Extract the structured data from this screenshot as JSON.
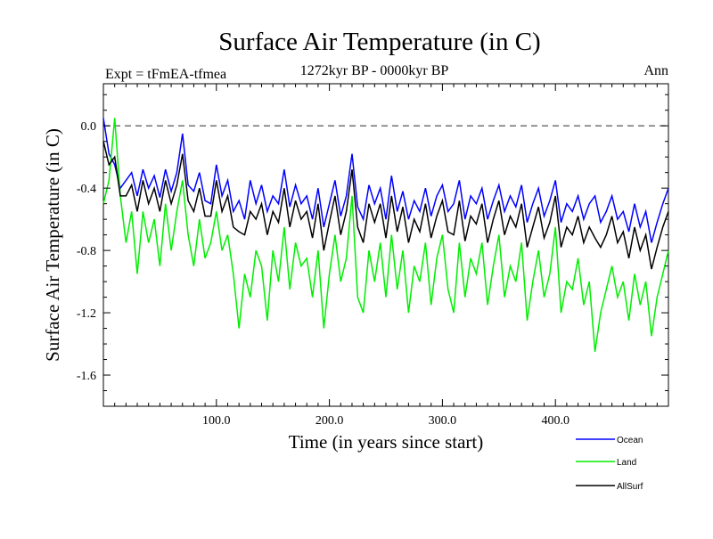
{
  "chart_data": {
    "type": "line",
    "title": "Surface Air Temperature (in C)",
    "subtitle": "1272kyr BP - 0000kyr BP",
    "experiment_label": "Expt = tFmEA-tfmea",
    "period_label": "Ann",
    "xlabel": "Time (in years since start)",
    "ylabel": "Surface Air Temperature (in C)",
    "xlim": [
      0,
      500
    ],
    "ylim": [
      -1.8,
      0.27
    ],
    "x_ticks": [
      100,
      200,
      300,
      400
    ],
    "x_tick_labels": [
      "100.0",
      "200.0",
      "300.0",
      "400.0"
    ],
    "y_ticks": [
      0.0,
      -0.4,
      -0.8,
      -1.2,
      -1.6
    ],
    "y_tick_labels": [
      "0.0",
      "-0.4",
      "-0.8",
      "-1.2",
      "-1.6"
    ],
    "reference_line": {
      "y": 0.0,
      "style": "dashed"
    },
    "grid": false,
    "legend_position": "bottom-right",
    "x": [
      0,
      5,
      10,
      15,
      20,
      25,
      30,
      35,
      40,
      45,
      50,
      55,
      60,
      65,
      70,
      75,
      80,
      85,
      90,
      95,
      100,
      105,
      110,
      115,
      120,
      125,
      130,
      135,
      140,
      145,
      150,
      155,
      160,
      165,
      170,
      175,
      180,
      185,
      190,
      195,
      200,
      205,
      210,
      215,
      220,
      225,
      230,
      235,
      240,
      245,
      250,
      255,
      260,
      265,
      270,
      275,
      280,
      285,
      290,
      295,
      300,
      305,
      310,
      315,
      320,
      325,
      330,
      335,
      340,
      345,
      350,
      355,
      360,
      365,
      370,
      375,
      380,
      385,
      390,
      395,
      400,
      405,
      410,
      415,
      420,
      425,
      430,
      435,
      440,
      445,
      450,
      455,
      460,
      465,
      470,
      475,
      480,
      485,
      490,
      495,
      500
    ],
    "series": [
      {
        "name": "Ocean",
        "color": "#0000ff",
        "values": [
          0.05,
          -0.18,
          -0.25,
          -0.4,
          -0.35,
          -0.3,
          -0.45,
          -0.28,
          -0.4,
          -0.32,
          -0.46,
          -0.28,
          -0.42,
          -0.3,
          -0.05,
          -0.38,
          -0.42,
          -0.3,
          -0.48,
          -0.5,
          -0.25,
          -0.45,
          -0.35,
          -0.55,
          -0.48,
          -0.6,
          -0.35,
          -0.5,
          -0.38,
          -0.55,
          -0.45,
          -0.5,
          -0.28,
          -0.52,
          -0.38,
          -0.5,
          -0.45,
          -0.6,
          -0.4,
          -0.65,
          -0.5,
          -0.35,
          -0.58,
          -0.45,
          -0.18,
          -0.52,
          -0.6,
          -0.38,
          -0.5,
          -0.4,
          -0.6,
          -0.32,
          -0.55,
          -0.42,
          -0.6,
          -0.48,
          -0.55,
          -0.4,
          -0.58,
          -0.45,
          -0.38,
          -0.55,
          -0.5,
          -0.35,
          -0.6,
          -0.45,
          -0.5,
          -0.4,
          -0.6,
          -0.48,
          -0.38,
          -0.55,
          -0.45,
          -0.52,
          -0.38,
          -0.62,
          -0.5,
          -0.4,
          -0.58,
          -0.48,
          -0.35,
          -0.62,
          -0.5,
          -0.55,
          -0.45,
          -0.6,
          -0.5,
          -0.45,
          -0.62,
          -0.55,
          -0.45,
          -0.6,
          -0.55,
          -0.68,
          -0.5,
          -0.65,
          -0.55,
          -0.75,
          -0.62,
          -0.5,
          -0.4
        ]
      },
      {
        "name": "Land",
        "color": "#00ee00",
        "values": [
          -0.5,
          -0.35,
          0.05,
          -0.45,
          -0.75,
          -0.55,
          -0.95,
          -0.55,
          -0.75,
          -0.6,
          -0.9,
          -0.5,
          -0.8,
          -0.55,
          -0.35,
          -0.7,
          -0.9,
          -0.6,
          -0.85,
          -0.75,
          -0.55,
          -0.8,
          -0.7,
          -0.95,
          -1.3,
          -0.95,
          -1.1,
          -0.8,
          -0.9,
          -1.25,
          -0.8,
          -1.0,
          -0.65,
          -1.05,
          -0.75,
          -0.9,
          -0.85,
          -1.1,
          -0.8,
          -1.3,
          -0.95,
          -0.7,
          -1.0,
          -0.85,
          -0.45,
          -1.1,
          -1.2,
          -0.8,
          -1.0,
          -0.75,
          -1.1,
          -0.7,
          -1.05,
          -0.8,
          -1.2,
          -0.9,
          -1.0,
          -0.75,
          -1.15,
          -0.85,
          -0.7,
          -1.05,
          -1.2,
          -0.75,
          -1.1,
          -0.85,
          -0.95,
          -0.75,
          -1.15,
          -0.9,
          -0.7,
          -1.1,
          -0.9,
          -1.0,
          -0.75,
          -1.25,
          -1.0,
          -0.8,
          -1.1,
          -0.95,
          -0.65,
          -1.2,
          -1.0,
          -1.05,
          -0.85,
          -1.15,
          -1.0,
          -1.45,
          -1.2,
          -1.05,
          -0.9,
          -1.1,
          -1.0,
          -1.25,
          -0.95,
          -1.15,
          -1.0,
          -1.35,
          -1.1,
          -0.95,
          -0.8
        ]
      },
      {
        "name": "AllSurf",
        "color": "#000000",
        "values": [
          -0.1,
          -0.25,
          -0.2,
          -0.45,
          -0.45,
          -0.38,
          -0.55,
          -0.35,
          -0.5,
          -0.4,
          -0.55,
          -0.35,
          -0.5,
          -0.38,
          -0.18,
          -0.48,
          -0.55,
          -0.4,
          -0.58,
          -0.58,
          -0.35,
          -0.55,
          -0.45,
          -0.65,
          -0.68,
          -0.7,
          -0.55,
          -0.6,
          -0.5,
          -0.7,
          -0.55,
          -0.62,
          -0.4,
          -0.65,
          -0.48,
          -0.6,
          -0.55,
          -0.72,
          -0.5,
          -0.8,
          -0.62,
          -0.45,
          -0.7,
          -0.55,
          -0.28,
          -0.65,
          -0.75,
          -0.5,
          -0.62,
          -0.5,
          -0.72,
          -0.45,
          -0.68,
          -0.52,
          -0.75,
          -0.6,
          -0.68,
          -0.5,
          -0.72,
          -0.58,
          -0.48,
          -0.68,
          -0.7,
          -0.48,
          -0.74,
          -0.58,
          -0.63,
          -0.5,
          -0.75,
          -0.6,
          -0.48,
          -0.7,
          -0.58,
          -0.65,
          -0.5,
          -0.78,
          -0.65,
          -0.52,
          -0.72,
          -0.62,
          -0.45,
          -0.78,
          -0.65,
          -0.7,
          -0.58,
          -0.75,
          -0.65,
          -0.72,
          -0.78,
          -0.7,
          -0.58,
          -0.75,
          -0.68,
          -0.85,
          -0.65,
          -0.8,
          -0.7,
          -0.92,
          -0.78,
          -0.65,
          -0.55
        ]
      }
    ]
  }
}
